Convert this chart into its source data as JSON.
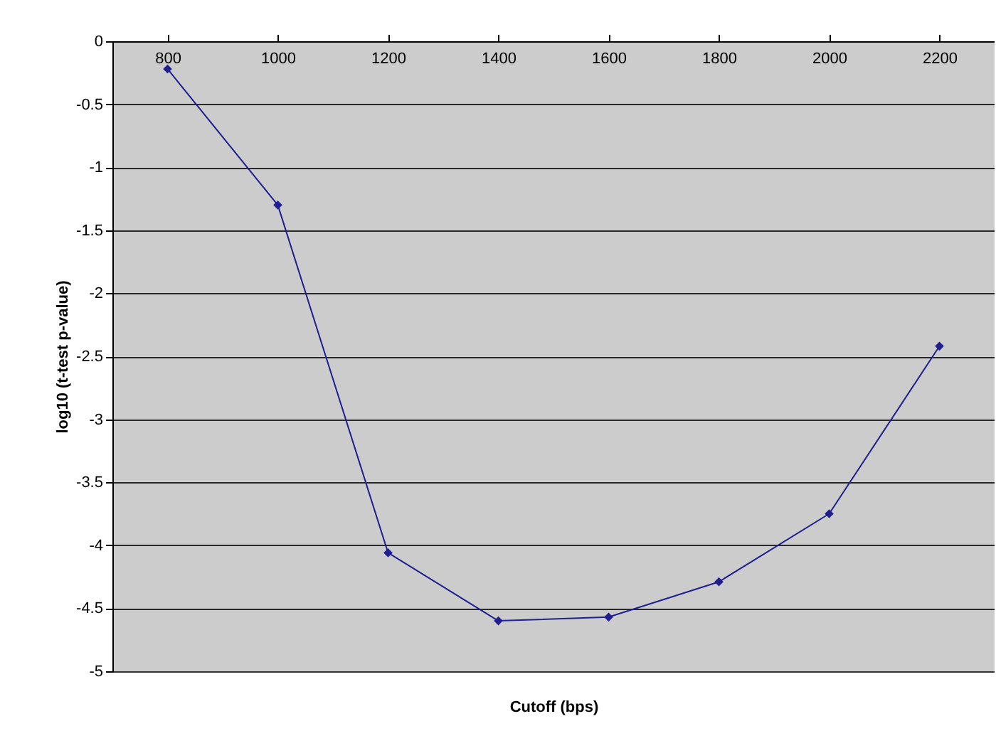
{
  "chart_data": {
    "type": "line",
    "xlabel": "Cutoff (bps)",
    "ylabel": "log10 (t-test p-value)",
    "categories": [
      "800",
      "1000",
      "1200",
      "1400",
      "1600",
      "1800",
      "2000",
      "2200"
    ],
    "series": [
      {
        "color": "#1f1f8f",
        "values": [
          -0.22,
          -1.3,
          -4.06,
          -4.6,
          -4.57,
          -4.29,
          -3.75,
          -2.42
        ]
      }
    ],
    "ylim": [
      -5,
      0
    ],
    "yticks": [
      -5,
      -4.5,
      -4,
      -3.5,
      -3,
      -2.5,
      -2,
      -1.5,
      -1,
      -0.5,
      0
    ],
    "grid": "y",
    "marker": "diamond",
    "line_style": "solid",
    "legend": false
  }
}
